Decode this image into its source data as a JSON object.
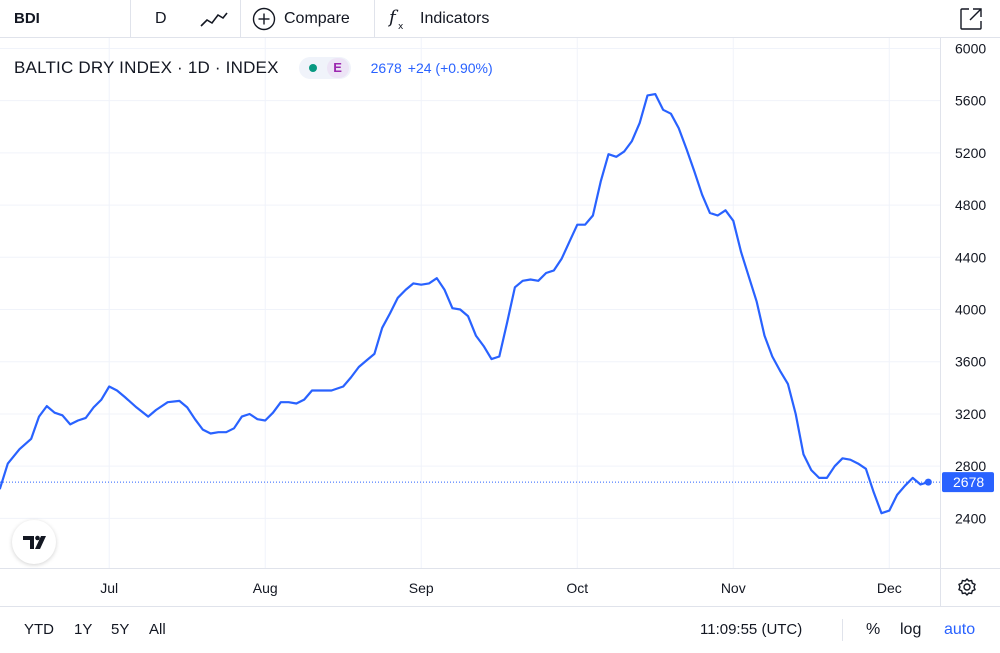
{
  "toolbar": {
    "symbol": "BDI",
    "interval": "D",
    "chart_type_icon": "line-chart-icon",
    "compare_label": "Compare",
    "compare_icon": "plus-circle-icon",
    "indicators_label": "Indicators",
    "indicators_icon": "fx-icon",
    "fullscreen_icon": "fullscreen-icon"
  },
  "legend": {
    "title": "BALTIC DRY INDEX · 1D · INDEX",
    "status_badge": "E",
    "value": "2678",
    "change": "+24 (+0.90%)"
  },
  "price_label": "2678",
  "bottom_bar": {
    "ranges": [
      "YTD",
      "1Y",
      "5Y",
      "All"
    ],
    "time": "11:09:55 (UTC)",
    "percent_label": "%",
    "log_label": "log",
    "auto_label": "auto"
  },
  "colors": {
    "line": "#2962ff",
    "grid": "#f0f3fa",
    "axis_text": "#131722",
    "status_dot": "#089981",
    "badge": "#9c27b0"
  },
  "chart_data": {
    "type": "line",
    "series": [
      {
        "values": [
          [
            0,
            2630
          ],
          [
            2,
            2820
          ],
          [
            5,
            2930
          ],
          [
            8,
            3010
          ],
          [
            10,
            3180
          ],
          [
            12,
            3260
          ],
          [
            14,
            3210
          ],
          [
            16,
            3190
          ],
          [
            18,
            3120
          ],
          [
            20,
            3150
          ],
          [
            22,
            3170
          ],
          [
            24,
            3250
          ],
          [
            26,
            3310
          ],
          [
            28,
            3410
          ],
          [
            30,
            3380
          ],
          [
            32,
            3330
          ],
          [
            35,
            3250
          ],
          [
            38,
            3180
          ],
          [
            40,
            3230
          ],
          [
            43,
            3290
          ],
          [
            46,
            3300
          ],
          [
            48,
            3250
          ],
          [
            50,
            3160
          ],
          [
            52,
            3080
          ],
          [
            54,
            3050
          ],
          [
            56,
            3060
          ],
          [
            58,
            3060
          ],
          [
            60,
            3090
          ],
          [
            62,
            3180
          ],
          [
            64,
            3200
          ],
          [
            66,
            3160
          ],
          [
            68,
            3150
          ],
          [
            70,
            3210
          ],
          [
            72,
            3290
          ],
          [
            74,
            3290
          ],
          [
            76,
            3280
          ],
          [
            78,
            3310
          ],
          [
            80,
            3380
          ],
          [
            82,
            3380
          ],
          [
            85,
            3380
          ],
          [
            88,
            3410
          ],
          [
            90,
            3480
          ],
          [
            92,
            3560
          ],
          [
            94,
            3610
          ],
          [
            96,
            3660
          ],
          [
            98,
            3860
          ],
          [
            100,
            3970
          ],
          [
            102,
            4090
          ],
          [
            104,
            4150
          ],
          [
            106,
            4200
          ],
          [
            108,
            4190
          ],
          [
            110,
            4200
          ],
          [
            112,
            4240
          ],
          [
            114,
            4150
          ],
          [
            116,
            4010
          ],
          [
            118,
            4000
          ],
          [
            120,
            3950
          ],
          [
            122,
            3800
          ],
          [
            124,
            3720
          ],
          [
            126,
            3620
          ],
          [
            128,
            3640
          ],
          [
            130,
            3900
          ],
          [
            132,
            4170
          ],
          [
            134,
            4220
          ],
          [
            136,
            4230
          ],
          [
            138,
            4220
          ],
          [
            140,
            4280
          ],
          [
            142,
            4300
          ],
          [
            144,
            4390
          ],
          [
            146,
            4520
          ],
          [
            148,
            4650
          ],
          [
            150,
            4650
          ],
          [
            152,
            4720
          ],
          [
            154,
            4980
          ],
          [
            156,
            5190
          ],
          [
            158,
            5170
          ],
          [
            160,
            5210
          ],
          [
            162,
            5290
          ],
          [
            164,
            5430
          ],
          [
            166,
            5640
          ],
          [
            168,
            5650
          ],
          [
            170,
            5530
          ],
          [
            172,
            5500
          ],
          [
            174,
            5390
          ],
          [
            176,
            5230
          ],
          [
            178,
            5060
          ],
          [
            180,
            4880
          ],
          [
            182,
            4740
          ],
          [
            184,
            4720
          ],
          [
            186,
            4760
          ],
          [
            188,
            4680
          ],
          [
            190,
            4440
          ],
          [
            192,
            4250
          ],
          [
            194,
            4060
          ],
          [
            196,
            3800
          ],
          [
            198,
            3640
          ],
          [
            200,
            3530
          ],
          [
            202,
            3430
          ],
          [
            204,
            3200
          ],
          [
            206,
            2890
          ],
          [
            208,
            2770
          ],
          [
            210,
            2710
          ],
          [
            212,
            2710
          ],
          [
            214,
            2800
          ],
          [
            216,
            2860
          ],
          [
            218,
            2850
          ],
          [
            220,
            2820
          ],
          [
            222,
            2780
          ],
          [
            224,
            2600
          ],
          [
            226,
            2440
          ],
          [
            228,
            2460
          ],
          [
            230,
            2580
          ],
          [
            232,
            2650
          ],
          [
            234,
            2710
          ],
          [
            236,
            2660
          ],
          [
            238,
            2678
          ]
        ]
      }
    ],
    "x_tick_labels": [
      {
        "label": "Jul",
        "x": 28
      },
      {
        "label": "Aug",
        "x": 68
      },
      {
        "label": "Sep",
        "x": 108
      },
      {
        "label": "Oct",
        "x": 148
      },
      {
        "label": "Nov",
        "x": 188
      },
      {
        "label": "Dec",
        "x": 228
      }
    ],
    "y_ticks": [
      2400,
      2800,
      3200,
      3600,
      4000,
      4400,
      4800,
      5200,
      5600,
      6000
    ],
    "y_range": [
      2020,
      6080
    ],
    "x_range": [
      0,
      241
    ],
    "last_value": 2678,
    "grid": true
  }
}
